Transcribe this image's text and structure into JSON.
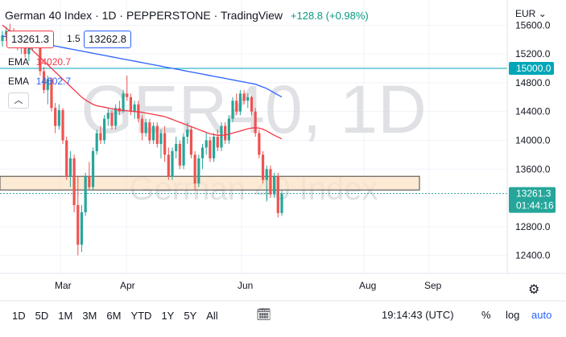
{
  "header": {
    "symbol": "German 40 Index",
    "interval": "1D",
    "exchange": "PEPPERSTONE",
    "source": "TradingView",
    "change": "+128.8 (+0.98%)"
  },
  "quote": {
    "sell": "13261.3",
    "spread": "1.5",
    "buy": "13262.8"
  },
  "indicators": [
    {
      "name": "EMA",
      "value": "14020.7",
      "color": "#f23645"
    },
    {
      "name": "EMA",
      "value": "14602.7",
      "color": "#2962ff"
    }
  ],
  "currency": "EUR",
  "watermark": {
    "big": "GER40, 1D",
    "small": "German 40 Index"
  },
  "price_axis": [
    "15600.0",
    "15200.0",
    "14800.0",
    "14400.0",
    "14000.0",
    "13600.0",
    "12800.0",
    "12400.0"
  ],
  "horizontal_line": {
    "value": 15000.0,
    "label": "15000.0",
    "color": "#00a6b8"
  },
  "last_price": {
    "value": 13261.3,
    "label": "13261.3",
    "countdown": "01:44:16",
    "color": "#26a69a"
  },
  "zone": {
    "low": 13310,
    "high": 13500
  },
  "time_axis": [
    "Mar",
    "Apr",
    "Jun",
    "Aug",
    "Sep"
  ],
  "toolbar": {
    "timeframes": [
      "1D",
      "5D",
      "1M",
      "3M",
      "6M",
      "YTD",
      "1Y",
      "5Y",
      "All"
    ],
    "clock": "19:14:43 (UTC)",
    "percent": "%",
    "log": "log",
    "auto": "auto"
  },
  "chart_data": {
    "type": "candlestick",
    "ylim": [
      12150,
      15950
    ],
    "title": "",
    "candles": [
      {
        "o": 15380,
        "h": 15520,
        "l": 15300,
        "c": 15460
      },
      {
        "o": 15460,
        "h": 15580,
        "l": 15380,
        "c": 15520
      },
      {
        "o": 15520,
        "h": 15620,
        "l": 15420,
        "c": 15470
      },
      {
        "o": 15470,
        "h": 15560,
        "l": 15360,
        "c": 15400
      },
      {
        "o": 15400,
        "h": 15480,
        "l": 15250,
        "c": 15300
      },
      {
        "o": 15300,
        "h": 15420,
        "l": 15200,
        "c": 15380
      },
      {
        "o": 15380,
        "h": 15450,
        "l": 15150,
        "c": 15200
      },
      {
        "o": 15200,
        "h": 15400,
        "l": 15100,
        "c": 15350
      },
      {
        "o": 15350,
        "h": 15480,
        "l": 15250,
        "c": 15420
      },
      {
        "o": 15420,
        "h": 15520,
        "l": 15280,
        "c": 15320
      },
      {
        "o": 15320,
        "h": 15360,
        "l": 14900,
        "c": 14960
      },
      {
        "o": 14960,
        "h": 15020,
        "l": 14650,
        "c": 14700
      },
      {
        "o": 14700,
        "h": 14900,
        "l": 14500,
        "c": 14850
      },
      {
        "o": 14850,
        "h": 14880,
        "l": 14400,
        "c": 14450
      },
      {
        "o": 14450,
        "h": 14520,
        "l": 14100,
        "c": 14200
      },
      {
        "o": 14200,
        "h": 14500,
        "l": 14150,
        "c": 14420
      },
      {
        "o": 14420,
        "h": 14450,
        "l": 13950,
        "c": 14000
      },
      {
        "o": 14000,
        "h": 14050,
        "l": 13450,
        "c": 13500
      },
      {
        "o": 13500,
        "h": 13850,
        "l": 13350,
        "c": 13750
      },
      {
        "o": 13750,
        "h": 13800,
        "l": 13000,
        "c": 13100
      },
      {
        "o": 13100,
        "h": 13500,
        "l": 12400,
        "c": 12550
      },
      {
        "o": 12550,
        "h": 13100,
        "l": 12450,
        "c": 13000
      },
      {
        "o": 13000,
        "h": 13550,
        "l": 12950,
        "c": 13500
      },
      {
        "o": 13500,
        "h": 13700,
        "l": 13300,
        "c": 13350
      },
      {
        "o": 13350,
        "h": 13900,
        "l": 13300,
        "c": 13850
      },
      {
        "o": 13850,
        "h": 14150,
        "l": 13800,
        "c": 14100
      },
      {
        "o": 14100,
        "h": 14200,
        "l": 13950,
        "c": 14000
      },
      {
        "o": 14000,
        "h": 14350,
        "l": 13950,
        "c": 14300
      },
      {
        "o": 14300,
        "h": 14450,
        "l": 14200,
        "c": 14380
      },
      {
        "o": 14380,
        "h": 14420,
        "l": 14150,
        "c": 14200
      },
      {
        "o": 14200,
        "h": 14500,
        "l": 14150,
        "c": 14450
      },
      {
        "o": 14450,
        "h": 14550,
        "l": 14350,
        "c": 14400
      },
      {
        "o": 14400,
        "h": 14700,
        "l": 14380,
        "c": 14650
      },
      {
        "o": 14650,
        "h": 14900,
        "l": 14550,
        "c": 14600
      },
      {
        "o": 14600,
        "h": 14650,
        "l": 14350,
        "c": 14400
      },
      {
        "o": 14400,
        "h": 14550,
        "l": 14300,
        "c": 14500
      },
      {
        "o": 14500,
        "h": 14550,
        "l": 14250,
        "c": 14300
      },
      {
        "o": 14300,
        "h": 14350,
        "l": 14000,
        "c": 14100
      },
      {
        "o": 14100,
        "h": 14300,
        "l": 14050,
        "c": 14250
      },
      {
        "o": 14250,
        "h": 14300,
        "l": 13950,
        "c": 14000
      },
      {
        "o": 14000,
        "h": 14250,
        "l": 13950,
        "c": 14200
      },
      {
        "o": 14200,
        "h": 14250,
        "l": 13900,
        "c": 13950
      },
      {
        "o": 13950,
        "h": 14150,
        "l": 13750,
        "c": 14100
      },
      {
        "o": 14100,
        "h": 14200,
        "l": 13700,
        "c": 13800
      },
      {
        "o": 13800,
        "h": 13900,
        "l": 13450,
        "c": 13500
      },
      {
        "o": 13500,
        "h": 13900,
        "l": 13450,
        "c": 13850
      },
      {
        "o": 13850,
        "h": 14050,
        "l": 13750,
        "c": 13950
      },
      {
        "o": 13950,
        "h": 14000,
        "l": 13600,
        "c": 13650
      },
      {
        "o": 13650,
        "h": 14100,
        "l": 13600,
        "c": 14050
      },
      {
        "o": 14050,
        "h": 14250,
        "l": 13950,
        "c": 14150
      },
      {
        "o": 14150,
        "h": 14200,
        "l": 13750,
        "c": 13800
      },
      {
        "o": 13800,
        "h": 13850,
        "l": 13300,
        "c": 13400
      },
      {
        "o": 13400,
        "h": 13800,
        "l": 13350,
        "c": 13750
      },
      {
        "o": 13750,
        "h": 13950,
        "l": 13600,
        "c": 13900
      },
      {
        "o": 13900,
        "h": 14100,
        "l": 13800,
        "c": 14000
      },
      {
        "o": 14000,
        "h": 14050,
        "l": 13700,
        "c": 13750
      },
      {
        "o": 13750,
        "h": 14100,
        "l": 13700,
        "c": 14050
      },
      {
        "o": 14050,
        "h": 14150,
        "l": 13850,
        "c": 13900
      },
      {
        "o": 13900,
        "h": 14250,
        "l": 13850,
        "c": 14200
      },
      {
        "o": 14200,
        "h": 14250,
        "l": 13950,
        "c": 14000
      },
      {
        "o": 14000,
        "h": 14350,
        "l": 13950,
        "c": 14300
      },
      {
        "o": 14300,
        "h": 14600,
        "l": 14250,
        "c": 14550
      },
      {
        "o": 14550,
        "h": 14650,
        "l": 14350,
        "c": 14400
      },
      {
        "o": 14400,
        "h": 14700,
        "l": 14350,
        "c": 14650
      },
      {
        "o": 14650,
        "h": 14700,
        "l": 14500,
        "c": 14550
      },
      {
        "o": 14550,
        "h": 14650,
        "l": 14450,
        "c": 14600
      },
      {
        "o": 14600,
        "h": 14620,
        "l": 14350,
        "c": 14400
      },
      {
        "o": 14400,
        "h": 14450,
        "l": 14050,
        "c": 14100
      },
      {
        "o": 14100,
        "h": 14150,
        "l": 13750,
        "c": 13800
      },
      {
        "o": 13800,
        "h": 13850,
        "l": 13400,
        "c": 13450
      },
      {
        "o": 13450,
        "h": 13650,
        "l": 13150,
        "c": 13600
      },
      {
        "o": 13600,
        "h": 13650,
        "l": 13200,
        "c": 13250
      },
      {
        "o": 13250,
        "h": 13550,
        "l": 13200,
        "c": 13500
      },
      {
        "o": 13500,
        "h": 13550,
        "l": 12930,
        "c": 12990
      },
      {
        "o": 12990,
        "h": 13300,
        "l": 12950,
        "c": 13261
      }
    ],
    "series": [
      {
        "name": "EMA 14020.7",
        "color": "#f23645",
        "values": [
          15600,
          15560,
          15520,
          15480,
          15440,
          15400,
          15350,
          15300,
          15250,
          15200,
          15150,
          15100,
          15050,
          15000,
          14950,
          14900,
          14850,
          14800,
          14750,
          14700,
          14650,
          14600,
          14560,
          14530,
          14500,
          14480,
          14470,
          14460,
          14450,
          14440,
          14430,
          14420,
          14415,
          14410,
          14405,
          14400,
          14395,
          14390,
          14380,
          14370,
          14360,
          14350,
          14340,
          14330,
          14310,
          14290,
          14270,
          14250,
          14230,
          14210,
          14190,
          14170,
          14150,
          14130,
          14110,
          14090,
          14080,
          14070,
          14070,
          14075,
          14085,
          14100,
          14115,
          14130,
          14145,
          14160,
          14170,
          14175,
          14170,
          14155,
          14130,
          14100,
          14070,
          14045,
          14020
        ]
      },
      {
        "name": "EMA 14602.7",
        "color": "#2962ff",
        "values": [
          15450,
          15440,
          15430,
          15420,
          15410,
          15400,
          15390,
          15380,
          15370,
          15360,
          15350,
          15340,
          15330,
          15320,
          15310,
          15300,
          15290,
          15280,
          15270,
          15260,
          15250,
          15240,
          15230,
          15220,
          15210,
          15200,
          15190,
          15180,
          15170,
          15160,
          15150,
          15140,
          15130,
          15120,
          15110,
          15100,
          15090,
          15080,
          15070,
          15060,
          15050,
          15040,
          15030,
          15020,
          15010,
          15000,
          14990,
          14980,
          14970,
          14960,
          14950,
          14940,
          14930,
          14920,
          14910,
          14900,
          14890,
          14880,
          14870,
          14860,
          14850,
          14840,
          14830,
          14820,
          14810,
          14800,
          14790,
          14780,
          14760,
          14740,
          14720,
          14690,
          14660,
          14630,
          14603
        ]
      }
    ]
  }
}
